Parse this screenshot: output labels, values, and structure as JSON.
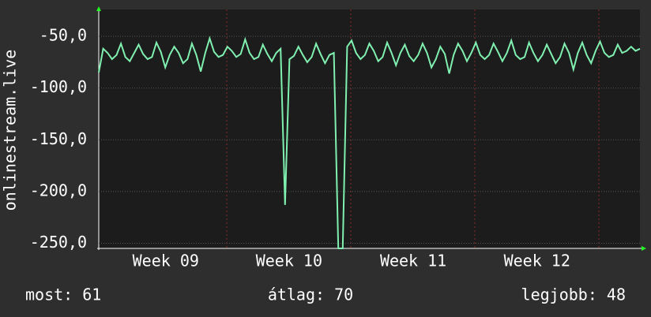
{
  "chart_data": {
    "type": "line",
    "y_label": "onlinestream.live",
    "x": [
      0,
      1,
      2,
      3,
      4,
      5,
      6,
      7,
      8,
      9,
      10,
      11,
      12,
      13,
      14,
      15,
      16,
      17,
      18,
      19,
      20,
      21,
      22,
      23,
      24,
      25,
      26,
      27,
      28,
      29,
      30,
      31,
      32,
      33,
      34,
      35,
      36,
      37,
      38,
      39,
      40,
      41,
      42,
      43,
      44,
      45,
      46,
      47,
      48,
      49,
      50,
      51,
      52,
      53,
      54,
      55,
      56,
      57,
      58,
      59,
      60,
      61,
      62,
      63,
      64,
      65,
      66,
      67,
      68,
      69,
      70,
      71,
      72,
      73,
      74,
      75,
      76,
      77,
      78,
      79,
      80,
      81,
      82,
      83,
      84,
      85,
      86,
      87,
      88,
      89,
      90,
      91,
      92,
      93,
      94,
      95,
      96,
      97,
      98,
      99,
      100,
      101,
      102,
      103,
      104,
      105,
      106,
      107,
      108,
      109,
      110,
      111,
      112,
      113,
      114,
      115,
      116,
      117,
      118,
      119,
      120,
      121,
      122
    ],
    "series": [
      {
        "name": "onlinestream.live",
        "color": "#80f0b0",
        "values": [
          -85,
          -62,
          -66,
          -72,
          -68,
          -57,
          -70,
          -74,
          -66,
          -58,
          -67,
          -72,
          -70,
          -56,
          -65,
          -80,
          -68,
          -60,
          -66,
          -76,
          -72,
          -57,
          -68,
          -84,
          -66,
          -52,
          -65,
          -70,
          -68,
          -60,
          -64,
          -70,
          -67,
          -53,
          -66,
          -72,
          -70,
          -58,
          -67,
          -74,
          -66,
          -62,
          -213,
          -72,
          -69,
          -60,
          -68,
          -75,
          -70,
          -57,
          -67,
          -76,
          -68,
          -66,
          -255,
          -255,
          -60,
          -54,
          -66,
          -72,
          -68,
          -57,
          -64,
          -74,
          -70,
          -56,
          -66,
          -78,
          -66,
          -58,
          -69,
          -74,
          -68,
          -57,
          -66,
          -80,
          -72,
          -60,
          -67,
          -86,
          -68,
          -57,
          -64,
          -74,
          -66,
          -56,
          -68,
          -72,
          -68,
          -57,
          -65,
          -74,
          -66,
          -54,
          -68,
          -72,
          -70,
          -56,
          -66,
          -74,
          -68,
          -58,
          -67,
          -76,
          -70,
          -57,
          -66,
          -82,
          -66,
          -56,
          -68,
          -76,
          -64,
          -55,
          -66,
          -70,
          -68,
          -58,
          -66,
          -64,
          -60,
          -64,
          -62
        ]
      }
    ],
    "xlim": [
      0,
      122
    ],
    "xticks": [
      {
        "value": 15.1,
        "label": "Week 09"
      },
      {
        "value": 42.9,
        "label": "Week 10"
      },
      {
        "value": 70.9,
        "label": "Week 11"
      },
      {
        "value": 98.8,
        "label": "Week 12"
      }
    ],
    "ylim": [
      -255,
      -24
    ],
    "yticks": [
      {
        "value": -50,
        "label": "-50,0"
      },
      {
        "value": -100,
        "label": "-100,0"
      },
      {
        "value": -150,
        "label": "-150,0"
      },
      {
        "value": -200,
        "label": "-200,0"
      },
      {
        "value": -250,
        "label": "-250,0"
      }
    ],
    "grid": true,
    "footer": [
      "most: 61",
      "átlag: 70",
      "legjobb: 48"
    ]
  }
}
